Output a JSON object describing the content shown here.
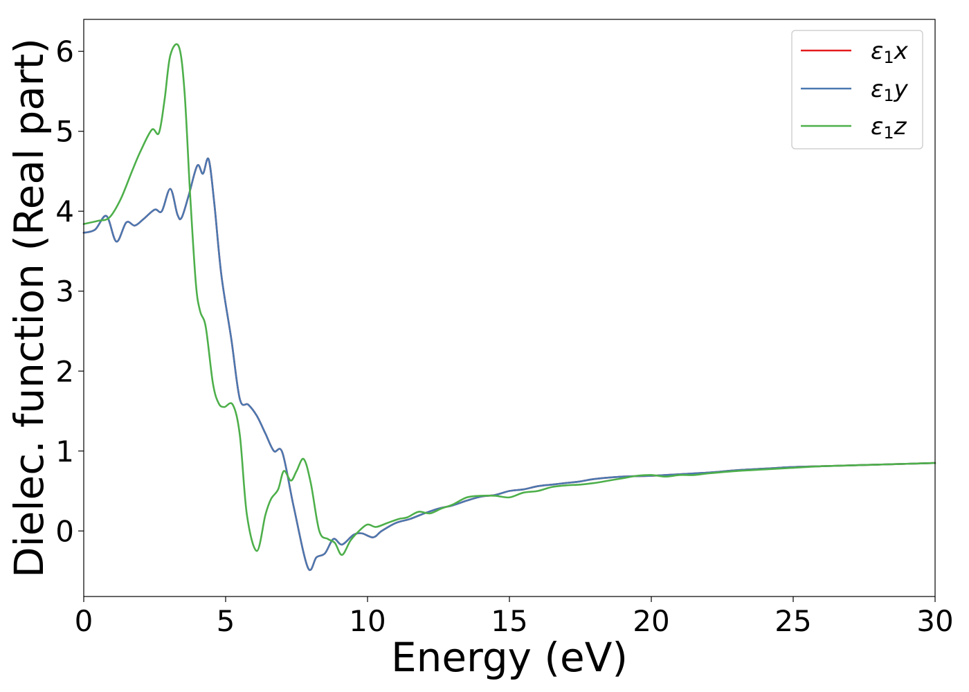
{
  "chart_data": {
    "type": "line",
    "title": "",
    "xlabel": "Energy (eV)",
    "ylabel": "Dielec. function (Real part)",
    "xlim": [
      0,
      30
    ],
    "ylim": [
      -0.82,
      6.4
    ],
    "xticks": [
      0,
      5,
      10,
      15,
      20,
      25,
      30
    ],
    "yticks": [
      0,
      1,
      2,
      3,
      4,
      5,
      6
    ],
    "grid": false,
    "legend_position": "top-right",
    "series": [
      {
        "name": "ε1x",
        "name_parts": [
          "ε",
          "1",
          "x"
        ],
        "color": "#e41a1c",
        "x": [
          0,
          0.4,
          0.8,
          1.15,
          1.5,
          1.8,
          2.1,
          2.5,
          2.75,
          3.05,
          3.3,
          3.45,
          3.7,
          4.0,
          4.2,
          4.4,
          4.6,
          4.85,
          5.2,
          5.5,
          5.8,
          6.1,
          6.4,
          6.7,
          7.0,
          7.4,
          7.9,
          8.2,
          8.5,
          8.8,
          9.1,
          9.5,
          9.8,
          10.2,
          10.5,
          11.0,
          11.5,
          12.0,
          12.5,
          13.0,
          13.5,
          14.0,
          14.5,
          15.0,
          15.5,
          16.0,
          16.5,
          17.0,
          17.5,
          18.0,
          19.0,
          20.0,
          21.0,
          22.0,
          23.0,
          24.0,
          25.0,
          26.0,
          27.0,
          28.0,
          29.0,
          30.0
        ],
        "values": [
          3.73,
          3.77,
          3.94,
          3.62,
          3.86,
          3.82,
          3.9,
          4.02,
          4.0,
          4.28,
          3.96,
          3.92,
          4.2,
          4.57,
          4.47,
          4.65,
          4.1,
          3.2,
          2.4,
          1.65,
          1.58,
          1.44,
          1.22,
          1.0,
          0.98,
          0.3,
          -0.46,
          -0.33,
          -0.28,
          -0.1,
          -0.17,
          -0.05,
          -0.03,
          -0.08,
          0.0,
          0.1,
          0.15,
          0.22,
          0.28,
          0.32,
          0.38,
          0.43,
          0.45,
          0.5,
          0.52,
          0.56,
          0.58,
          0.6,
          0.62,
          0.65,
          0.68,
          0.69,
          0.71,
          0.73,
          0.76,
          0.78,
          0.8,
          0.81,
          0.82,
          0.83,
          0.84,
          0.85
        ]
      },
      {
        "name": "ε1y",
        "name_parts": [
          "ε",
          "1",
          "y"
        ],
        "color": "#4a78b0",
        "x": [
          0,
          0.4,
          0.8,
          1.15,
          1.5,
          1.8,
          2.1,
          2.5,
          2.75,
          3.05,
          3.3,
          3.45,
          3.7,
          4.0,
          4.2,
          4.4,
          4.6,
          4.85,
          5.2,
          5.5,
          5.8,
          6.1,
          6.4,
          6.7,
          7.0,
          7.4,
          7.9,
          8.2,
          8.5,
          8.8,
          9.1,
          9.5,
          9.8,
          10.2,
          10.5,
          11.0,
          11.5,
          12.0,
          12.5,
          13.0,
          13.5,
          14.0,
          14.5,
          15.0,
          15.5,
          16.0,
          16.5,
          17.0,
          17.5,
          18.0,
          19.0,
          20.0,
          21.0,
          22.0,
          23.0,
          24.0,
          25.0,
          26.0,
          27.0,
          28.0,
          29.0,
          30.0
        ],
        "values": [
          3.73,
          3.77,
          3.94,
          3.62,
          3.86,
          3.82,
          3.9,
          4.02,
          4.0,
          4.28,
          3.96,
          3.92,
          4.2,
          4.57,
          4.47,
          4.65,
          4.1,
          3.2,
          2.4,
          1.65,
          1.58,
          1.44,
          1.22,
          1.0,
          0.98,
          0.3,
          -0.46,
          -0.33,
          -0.28,
          -0.1,
          -0.17,
          -0.05,
          -0.03,
          -0.08,
          0.0,
          0.1,
          0.15,
          0.22,
          0.28,
          0.32,
          0.38,
          0.43,
          0.45,
          0.5,
          0.52,
          0.56,
          0.58,
          0.6,
          0.62,
          0.65,
          0.68,
          0.69,
          0.71,
          0.73,
          0.76,
          0.78,
          0.8,
          0.81,
          0.82,
          0.83,
          0.84,
          0.85
        ]
      },
      {
        "name": "ε1z",
        "name_parts": [
          "ε",
          "1",
          "z"
        ],
        "color": "#4daf4a",
        "x": [
          0,
          0.5,
          0.9,
          1.3,
          1.7,
          2.0,
          2.4,
          2.65,
          2.85,
          3.05,
          3.35,
          3.55,
          3.75,
          3.95,
          4.1,
          4.3,
          4.55,
          4.75,
          4.95,
          5.25,
          5.5,
          5.75,
          6.1,
          6.4,
          6.6,
          6.85,
          7.05,
          7.3,
          7.5,
          7.75,
          8.0,
          8.3,
          8.6,
          8.85,
          9.1,
          9.4,
          9.7,
          10.0,
          10.3,
          10.7,
          11.1,
          11.4,
          11.8,
          12.2,
          12.6,
          13.0,
          13.5,
          14.0,
          14.5,
          15.0,
          15.5,
          16.0,
          16.5,
          17.0,
          17.5,
          18.0,
          18.5,
          19.0,
          19.5,
          20.0,
          20.5,
          21.0,
          21.5,
          22.0,
          23.0,
          24.0,
          25.0,
          26.0,
          27.0,
          28.0,
          29.0,
          30.0
        ],
        "values": [
          3.84,
          3.88,
          3.92,
          4.15,
          4.5,
          4.75,
          5.02,
          4.98,
          5.4,
          5.95,
          6.06,
          5.5,
          4.2,
          3.1,
          2.75,
          2.55,
          1.85,
          1.6,
          1.55,
          1.58,
          1.2,
          0.2,
          -0.25,
          0.2,
          0.4,
          0.52,
          0.75,
          0.63,
          0.75,
          0.9,
          0.6,
          0.0,
          -0.1,
          -0.15,
          -0.3,
          -0.12,
          0.0,
          0.08,
          0.05,
          0.1,
          0.15,
          0.17,
          0.24,
          0.22,
          0.28,
          0.33,
          0.42,
          0.44,
          0.44,
          0.42,
          0.48,
          0.5,
          0.55,
          0.57,
          0.58,
          0.6,
          0.63,
          0.66,
          0.69,
          0.7,
          0.68,
          0.7,
          0.7,
          0.72,
          0.75,
          0.77,
          0.79,
          0.81,
          0.82,
          0.83,
          0.84,
          0.85
        ]
      }
    ]
  }
}
